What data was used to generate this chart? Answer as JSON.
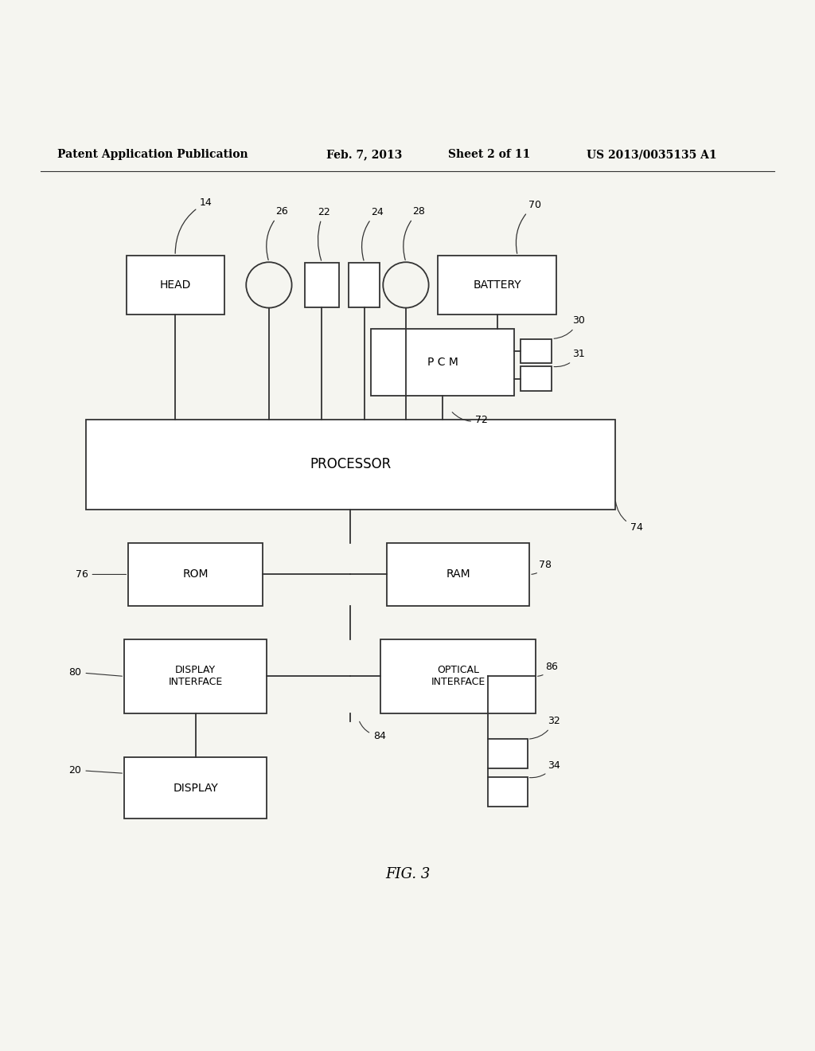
{
  "bg_color": "#f5f5f0",
  "line_color": "#333333",
  "header_text": "Patent Application Publication",
  "header_date": "Feb. 7, 2013",
  "header_sheet": "Sheet 2 of 11",
  "header_patent": "US 2013/0035135 A1",
  "fig_label": "FIG. 3"
}
